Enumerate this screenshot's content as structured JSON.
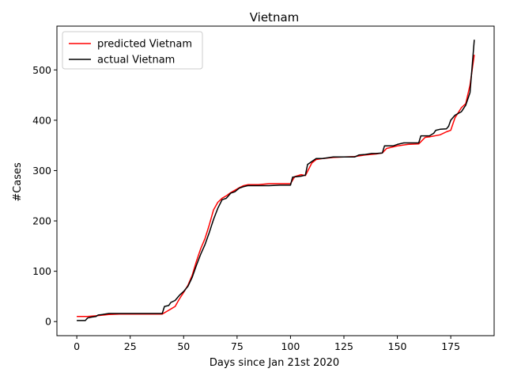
{
  "chart_data": {
    "type": "line",
    "title": "Vietnam",
    "xlabel": "Days since Jan 21st 2020",
    "ylabel": "#Cases",
    "xlim": [
      -9.3,
      195.3
    ],
    "ylim": [
      -28,
      587
    ],
    "xticks": [
      0,
      25,
      50,
      75,
      100,
      125,
      150,
      175
    ],
    "yticks": [
      0,
      100,
      200,
      300,
      400,
      500
    ],
    "grid": false,
    "legend_position": "top-left",
    "series": [
      {
        "name": "predicted Vietnam",
        "color": "#ff0000",
        "x": [
          0,
          5,
          10,
          15,
          20,
          25,
          30,
          35,
          40,
          42,
          44,
          46,
          48,
          50,
          52,
          54,
          56,
          58,
          60,
          62,
          64,
          66,
          68,
          70,
          72,
          74,
          76,
          78,
          80,
          85,
          90,
          95,
          100,
          102,
          105,
          107,
          110,
          112,
          115,
          120,
          125,
          130,
          135,
          140,
          143,
          145,
          150,
          155,
          160,
          163,
          165,
          170,
          173,
          175,
          177,
          180,
          182,
          184,
          186
        ],
        "y": [
          10,
          10,
          12,
          14,
          15,
          15,
          15,
          15,
          15,
          20,
          25,
          30,
          45,
          58,
          72,
          92,
          120,
          145,
          165,
          192,
          222,
          237,
          245,
          250,
          256,
          261,
          266,
          270,
          272,
          272,
          274,
          274,
          274,
          288,
          292,
          290,
          315,
          322,
          324,
          326,
          327,
          328,
          331,
          333,
          335,
          344,
          349,
          352,
          353,
          366,
          367,
          371,
          377,
          380,
          405,
          425,
          433,
          470,
          530
        ]
      },
      {
        "name": "actual Vietnam",
        "color": "#000000",
        "x": [
          0,
          4,
          5,
          7,
          9,
          10,
          12,
          15,
          17,
          20,
          25,
          30,
          35,
          40,
          41,
          43,
          44,
          46,
          48,
          50,
          52,
          54,
          56,
          58,
          60,
          62,
          64,
          66,
          68,
          70,
          72,
          74,
          76,
          78,
          80,
          85,
          90,
          95,
          98,
          100,
          101,
          105,
          107,
          108,
          110,
          112,
          115,
          120,
          125,
          130,
          132,
          135,
          138,
          140,
          143,
          144,
          148,
          150,
          153,
          155,
          160,
          161,
          163,
          165,
          167,
          168,
          170,
          173,
          174,
          175,
          177,
          180,
          182,
          184,
          186
        ],
        "y": [
          2,
          2,
          7,
          9,
          10,
          13,
          14,
          16,
          16,
          16,
          16,
          16,
          16,
          16,
          30,
          32,
          38,
          42,
          52,
          60,
          70,
          88,
          112,
          134,
          153,
          177,
          203,
          225,
          242,
          245,
          255,
          258,
          265,
          268,
          270,
          270,
          270,
          271,
          271,
          271,
          287,
          289,
          291,
          312,
          318,
          324,
          324,
          327,
          327,
          327,
          331,
          332,
          334,
          334,
          335,
          349,
          349,
          352,
          355,
          355,
          355,
          369,
          369,
          369,
          374,
          380,
          382,
          383,
          388,
          400,
          410,
          417,
          430,
          455,
          560
        ]
      }
    ]
  }
}
